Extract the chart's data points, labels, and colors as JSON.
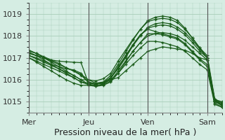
{
  "bg_color": "#d5ede3",
  "line_color": "#1a5c1a",
  "grid_color": "#a8cdb8",
  "xlabel": "Pression niveau de la mer( hPa )",
  "xlabel_fontsize": 9,
  "tick_fontsize": 8,
  "ylim": [
    1014.5,
    1019.5
  ],
  "yticks": [
    1015,
    1016,
    1017,
    1018,
    1019
  ],
  "xtick_labels": [
    "Mer",
    "Jeu",
    "Ven",
    "Sam"
  ],
  "xtick_positions": [
    0,
    48,
    96,
    144
  ],
  "total_hours": 156,
  "series": [
    {
      "x": [
        0,
        6,
        12,
        18,
        24,
        30,
        36,
        42,
        48,
        54,
        60,
        66,
        72,
        78,
        84,
        90,
        96,
        102,
        108,
        114,
        120,
        126,
        132,
        138,
        144,
        150,
        156
      ],
      "y": [
        1017.2,
        1017.1,
        1017.0,
        1016.9,
        1016.85,
        1016.82,
        1016.8,
        1016.78,
        1015.85,
        1015.82,
        1015.85,
        1016.0,
        1016.1,
        1016.4,
        1016.7,
        1017.0,
        1017.3,
        1017.4,
        1017.5,
        1017.45,
        1017.4,
        1017.35,
        1017.2,
        1017.0,
        1016.9,
        1015.1,
        1015.0
      ]
    },
    {
      "x": [
        0,
        6,
        12,
        18,
        24,
        30,
        36,
        42,
        48,
        54,
        60,
        66,
        72,
        78,
        84,
        90,
        96,
        102,
        108,
        114,
        120,
        126,
        132,
        138,
        144,
        150,
        156
      ],
      "y": [
        1017.1,
        1017.0,
        1016.85,
        1016.7,
        1016.6,
        1016.5,
        1016.45,
        1016.3,
        1015.85,
        1015.8,
        1015.85,
        1016.0,
        1016.3,
        1016.8,
        1017.3,
        1017.7,
        1018.0,
        1018.1,
        1018.15,
        1018.1,
        1018.0,
        1017.8,
        1017.5,
        1017.2,
        1016.9,
        1015.05,
        1014.95
      ]
    },
    {
      "x": [
        0,
        6,
        12,
        18,
        24,
        30,
        36,
        42,
        48,
        54,
        60,
        66,
        72,
        78,
        84,
        90,
        96,
        102,
        108,
        114,
        120,
        126,
        132,
        138,
        144,
        150,
        156
      ],
      "y": [
        1017.2,
        1017.1,
        1017.0,
        1016.85,
        1016.7,
        1016.55,
        1016.4,
        1016.2,
        1015.9,
        1015.82,
        1015.85,
        1016.1,
        1016.5,
        1017.0,
        1017.55,
        1018.0,
        1018.4,
        1018.55,
        1018.6,
        1018.55,
        1018.4,
        1018.15,
        1017.8,
        1017.4,
        1017.0,
        1015.0,
        1014.85
      ]
    },
    {
      "x": [
        0,
        6,
        12,
        18,
        24,
        30,
        36,
        42,
        48,
        54,
        60,
        66,
        72,
        78,
        84,
        90,
        96,
        102,
        108,
        114,
        120,
        126,
        132,
        138,
        144,
        150,
        156
      ],
      "y": [
        1017.3,
        1017.2,
        1017.05,
        1016.9,
        1016.75,
        1016.55,
        1016.4,
        1016.25,
        1016.0,
        1015.85,
        1015.9,
        1016.2,
        1016.7,
        1017.25,
        1017.8,
        1018.3,
        1018.7,
        1018.85,
        1018.9,
        1018.85,
        1018.7,
        1018.35,
        1017.9,
        1017.45,
        1017.0,
        1015.1,
        1014.85
      ]
    },
    {
      "x": [
        0,
        6,
        12,
        18,
        24,
        30,
        36,
        42,
        48,
        54,
        60,
        66,
        72,
        78,
        84,
        90,
        96,
        102,
        108,
        114,
        120,
        126,
        132,
        138,
        144,
        150,
        156
      ],
      "y": [
        1017.1,
        1016.95,
        1016.8,
        1016.65,
        1016.5,
        1016.35,
        1016.2,
        1016.0,
        1015.8,
        1015.75,
        1015.8,
        1016.05,
        1016.55,
        1017.05,
        1017.6,
        1018.05,
        1018.3,
        1018.2,
        1018.1,
        1018.0,
        1017.9,
        1017.65,
        1017.3,
        1016.95,
        1016.7,
        1015.05,
        1014.8
      ]
    },
    {
      "x": [
        0,
        6,
        12,
        18,
        24,
        30,
        36,
        42,
        48,
        54,
        60,
        66,
        72,
        78,
        84,
        90,
        96,
        102,
        108,
        114,
        120,
        126,
        132,
        138,
        144,
        150,
        156
      ],
      "y": [
        1017.0,
        1016.85,
        1016.7,
        1016.55,
        1016.4,
        1016.25,
        1016.1,
        1015.9,
        1015.78,
        1015.72,
        1015.78,
        1015.95,
        1016.4,
        1016.85,
        1017.3,
        1017.7,
        1018.1,
        1018.1,
        1018.05,
        1017.95,
        1017.85,
        1017.6,
        1017.25,
        1016.9,
        1016.6,
        1014.95,
        1014.75
      ]
    },
    {
      "x": [
        0,
        6,
        12,
        18,
        24,
        30,
        36,
        42,
        48,
        54,
        60,
        66,
        72,
        78,
        84,
        90,
        96,
        102,
        108,
        114,
        120,
        126,
        132,
        138,
        144,
        150,
        156
      ],
      "y": [
        1017.0,
        1016.8,
        1016.6,
        1016.4,
        1016.2,
        1016.0,
        1015.85,
        1015.75,
        1015.75,
        1015.7,
        1015.75,
        1015.9,
        1016.3,
        1016.7,
        1017.1,
        1017.45,
        1017.75,
        1017.75,
        1017.7,
        1017.6,
        1017.5,
        1017.3,
        1017.0,
        1016.7,
        1016.45,
        1014.88,
        1014.75
      ]
    },
    {
      "x": [
        0,
        6,
        12,
        18,
        24,
        30,
        36,
        42,
        48,
        54,
        60,
        66,
        72,
        78,
        84,
        90,
        96,
        102,
        108,
        114,
        120,
        126,
        132,
        138,
        144,
        150,
        156
      ],
      "y": [
        1017.35,
        1017.2,
        1017.0,
        1016.8,
        1016.6,
        1016.4,
        1016.2,
        1016.0,
        1016.0,
        1015.95,
        1016.05,
        1016.3,
        1016.85,
        1017.35,
        1017.85,
        1018.3,
        1018.65,
        1018.75,
        1018.8,
        1018.75,
        1018.6,
        1018.3,
        1017.9,
        1017.45,
        1017.1,
        1015.15,
        1014.9
      ]
    },
    {
      "x": [
        0,
        6,
        12,
        18,
        24,
        30,
        36,
        42,
        48,
        54,
        60,
        66,
        72,
        78,
        84,
        90,
        96,
        102,
        108,
        114,
        120,
        126,
        132,
        138,
        144,
        150,
        156
      ],
      "y": [
        1017.25,
        1017.1,
        1016.9,
        1016.7,
        1016.5,
        1016.3,
        1016.1,
        1015.9,
        1015.85,
        1015.8,
        1015.88,
        1016.1,
        1016.6,
        1017.1,
        1017.6,
        1018.05,
        1018.35,
        1018.45,
        1018.5,
        1018.45,
        1018.3,
        1018.05,
        1017.7,
        1017.3,
        1017.0,
        1015.05,
        1014.85
      ]
    }
  ]
}
